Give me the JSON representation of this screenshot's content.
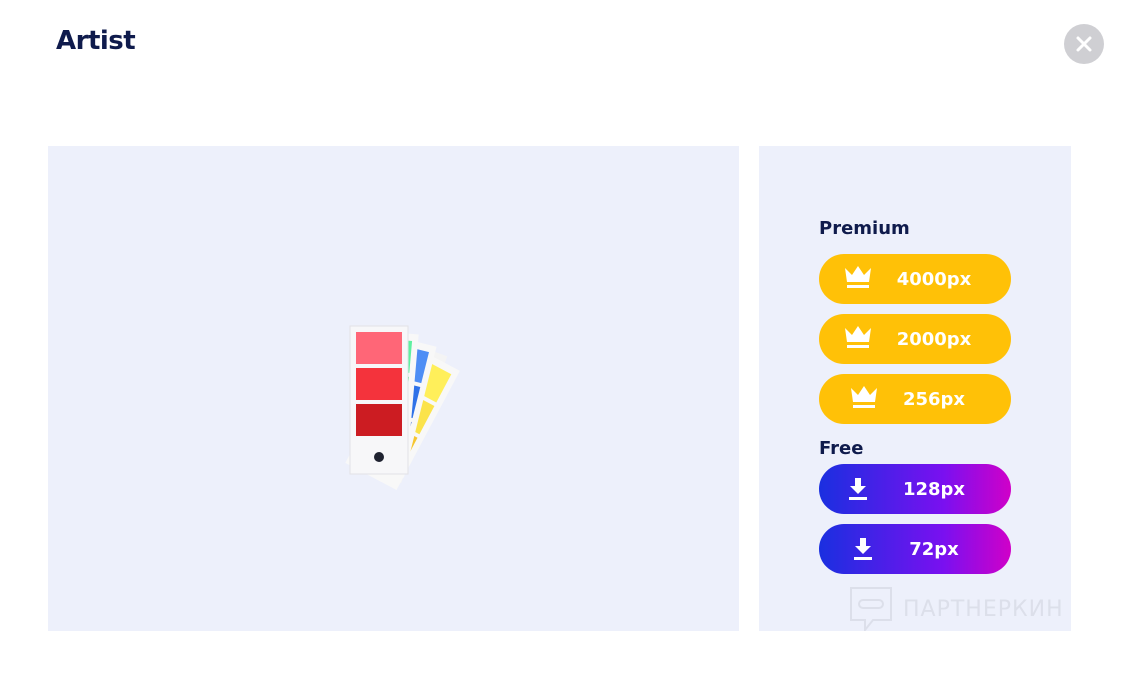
{
  "dialog": {
    "title": "Artist",
    "close_icon": "close-icon"
  },
  "preview": {
    "image": "color-swatch-fan-icon"
  },
  "premium": {
    "label": "Premium",
    "options": [
      {
        "label": "4000px",
        "icon": "crown-icon"
      },
      {
        "label": "2000px",
        "icon": "crown-icon"
      },
      {
        "label": "256px",
        "icon": "crown-icon"
      }
    ],
    "color": "#ffc107"
  },
  "free": {
    "label": "Free",
    "options": [
      {
        "label": "128px",
        "icon": "download-icon"
      },
      {
        "label": "72px",
        "icon": "download-icon"
      }
    ],
    "gradient": [
      "#1a2fe0",
      "#d000c8"
    ]
  },
  "watermark": "ПАРТНЕРКИН"
}
